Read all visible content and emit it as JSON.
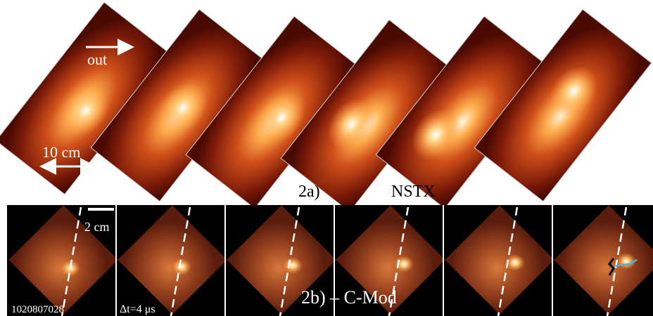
{
  "top_panel": {
    "arrow_label": "out",
    "scale_label": "10 cm",
    "panel_label": "2a)",
    "device_label": "NSTX"
  },
  "bottom_panel": {
    "scale_label": "2 cm",
    "shot_label": "1020807028",
    "time_label": "Δt=4 μs",
    "panel_label": "2b) – C-Mod"
  }
}
